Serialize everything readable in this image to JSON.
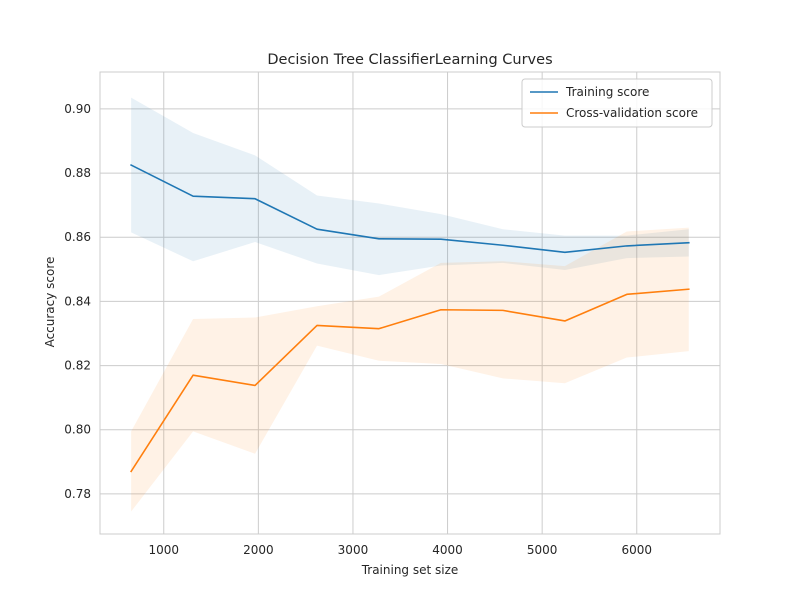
{
  "chart_data": {
    "type": "line",
    "title": "Decision Tree ClassifierLearning Curves",
    "xlabel": "Training set size",
    "ylabel": "Accuracy score",
    "xlim": [
      326,
      6880
    ],
    "ylim": [
      0.7675,
      0.9115
    ],
    "x_ticks": [
      1000,
      2000,
      3000,
      4000,
      5000,
      6000
    ],
    "x_tick_labels": [
      "1000",
      "2000",
      "3000",
      "4000",
      "5000",
      "6000"
    ],
    "y_ticks": [
      0.78,
      0.8,
      0.82,
      0.84,
      0.86,
      0.88,
      0.9
    ],
    "y_tick_labels": [
      "0.78",
      "0.80",
      "0.82",
      "0.84",
      "0.86",
      "0.88",
      "0.90"
    ],
    "grid": true,
    "legend_position": "top-right",
    "x": [
      655,
      1310,
      1965,
      2620,
      3275,
      3930,
      4585,
      5240,
      5895,
      6550
    ],
    "series": [
      {
        "name": "Training score",
        "color": "#1f77b4",
        "values": [
          0.8825,
          0.8728,
          0.872,
          0.8625,
          0.8595,
          0.8594,
          0.8575,
          0.8553,
          0.8573,
          0.8583
        ],
        "band_upper": [
          0.9035,
          0.8925,
          0.8855,
          0.873,
          0.8705,
          0.8672,
          0.8625,
          0.8605,
          0.8605,
          0.8625
        ],
        "band_lower": [
          0.8615,
          0.8525,
          0.8585,
          0.8518,
          0.8482,
          0.8512,
          0.852,
          0.8498,
          0.8535,
          0.854
        ]
      },
      {
        "name": "Cross-validation score",
        "color": "#ff7f0e",
        "values": [
          0.787,
          0.817,
          0.8138,
          0.8325,
          0.8315,
          0.8374,
          0.8372,
          0.8339,
          0.8422,
          0.8438
        ],
        "band_upper": [
          0.7995,
          0.8345,
          0.835,
          0.8385,
          0.8415,
          0.852,
          0.8525,
          0.851,
          0.8618,
          0.863
        ],
        "band_lower": [
          0.7745,
          0.7995,
          0.7925,
          0.8262,
          0.8215,
          0.8205,
          0.816,
          0.8145,
          0.8225,
          0.8245
        ]
      }
    ]
  }
}
